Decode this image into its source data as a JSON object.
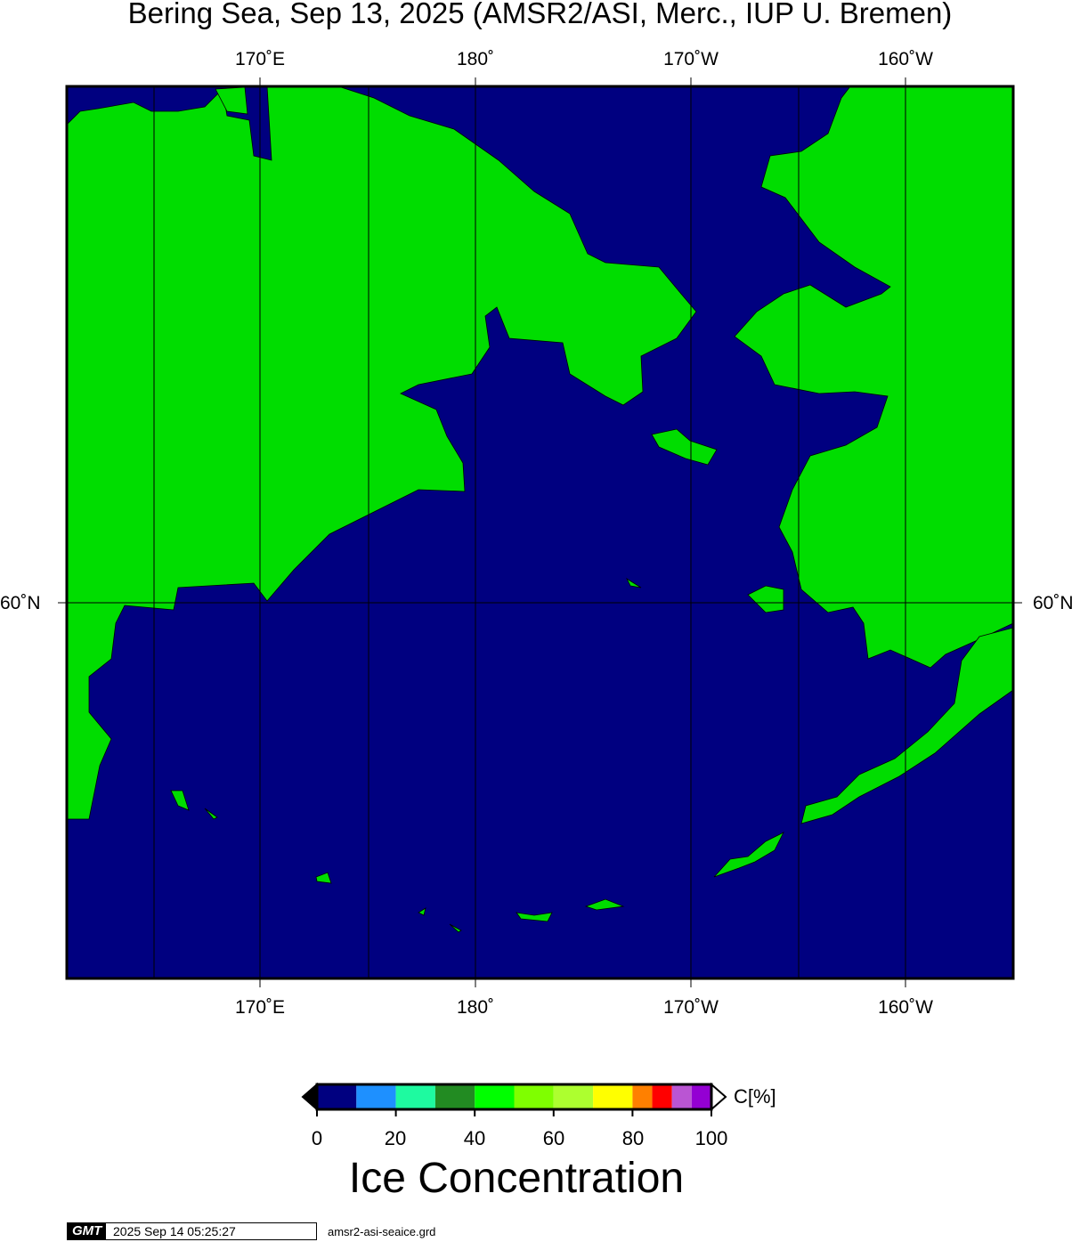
{
  "title": "Bering Sea, Sep 13, 2025 (AMSR2/ASI, Merc., IUP U. Bremen)",
  "map": {
    "region": "Bering Sea",
    "projection": "Mercator",
    "colors": {
      "ocean": "#000080",
      "land": "#00DD00",
      "coast": "#000000",
      "grid": "#000000"
    },
    "lon_labels": [
      "170˚E",
      "180˚",
      "170˚W",
      "160˚W"
    ],
    "lat_labels": [
      "60˚N"
    ]
  },
  "colorbar": {
    "title": "Ice Concentration",
    "unit_label": "C[%]",
    "ticks": [
      "0",
      "20",
      "40",
      "60",
      "80",
      "100"
    ],
    "range": [
      0,
      100
    ],
    "bins": [
      {
        "from": 0,
        "to": 10,
        "color": "#000080"
      },
      {
        "from": 10,
        "to": 20,
        "color": "#1E90FF"
      },
      {
        "from": 20,
        "to": 30,
        "color": "#1EFAA0"
      },
      {
        "from": 30,
        "to": 40,
        "color": "#228B22"
      },
      {
        "from": 40,
        "to": 50,
        "color": "#00FF00"
      },
      {
        "from": 50,
        "to": 60,
        "color": "#7FFF00"
      },
      {
        "from": 60,
        "to": 70,
        "color": "#ADFF2F"
      },
      {
        "from": 70,
        "to": 80,
        "color": "#FFFF00"
      },
      {
        "from": 80,
        "to": 85,
        "color": "#FF8000"
      },
      {
        "from": 85,
        "to": 90,
        "color": "#FF0000"
      },
      {
        "from": 90,
        "to": 95,
        "color": "#BA55D3"
      },
      {
        "from": 95,
        "to": 100,
        "color": "#9400D3"
      }
    ],
    "below_color": "#000000",
    "above_color": "#FFFFFF"
  },
  "footer": {
    "logo": "GMT",
    "timestamp": "2025 Sep 14 05:25:27",
    "filename": "amsr2-asi-seaice.grd"
  }
}
